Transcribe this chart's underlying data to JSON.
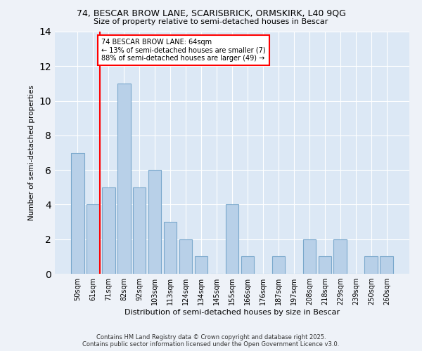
{
  "title1": "74, BESCAR BROW LANE, SCARISBRICK, ORMSKIRK, L40 9QG",
  "title2": "Size of property relative to semi-detached houses in Bescar",
  "xlabel": "Distribution of semi-detached houses by size in Bescar",
  "ylabel": "Number of semi-detached properties",
  "categories": [
    "50sqm",
    "61sqm",
    "71sqm",
    "82sqm",
    "92sqm",
    "103sqm",
    "113sqm",
    "124sqm",
    "134sqm",
    "145sqm",
    "155sqm",
    "166sqm",
    "176sqm",
    "187sqm",
    "197sqm",
    "208sqm",
    "218sqm",
    "229sqm",
    "239sqm",
    "250sqm",
    "260sqm"
  ],
  "values": [
    7,
    4,
    5,
    11,
    5,
    6,
    3,
    2,
    1,
    0,
    4,
    1,
    0,
    1,
    0,
    2,
    1,
    2,
    0,
    1,
    1
  ],
  "bar_color": "#b8d0e8",
  "bar_edge_color": "#7aa8cc",
  "annotation_title": "74 BESCAR BROW LANE: 64sqm",
  "annotation_line1": "← 13% of semi-detached houses are smaller (7)",
  "annotation_line2": "88% of semi-detached houses are larger (49) →",
  "ylim": [
    0,
    14
  ],
  "yticks": [
    0,
    2,
    4,
    6,
    8,
    10,
    12,
    14
  ],
  "footer1": "Contains HM Land Registry data © Crown copyright and database right 2025.",
  "footer2": "Contains public sector information licensed under the Open Government Licence v3.0.",
  "bg_color": "#eef2f8",
  "plot_bg_color": "#dce8f5"
}
